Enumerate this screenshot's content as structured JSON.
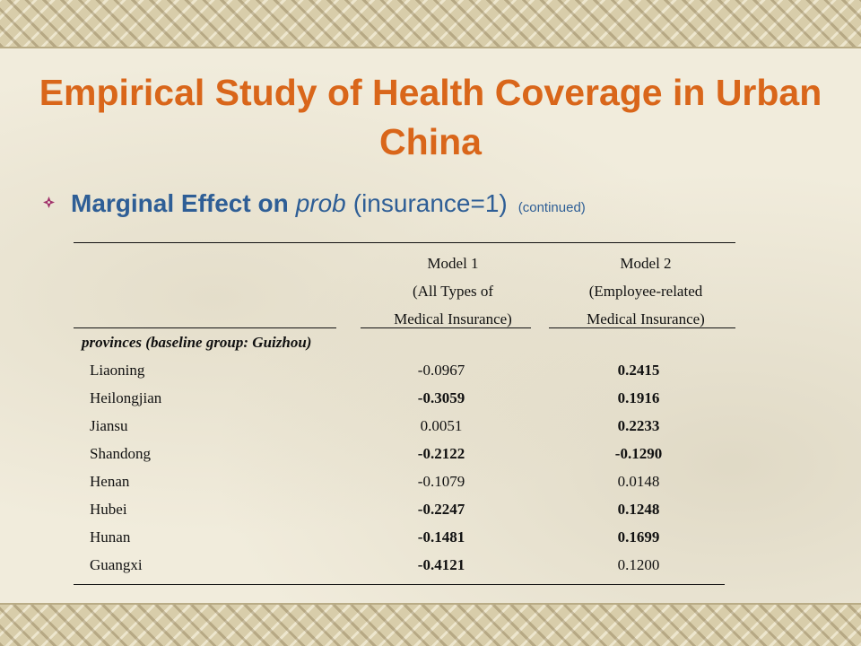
{
  "slide": {
    "title": "Empirical Study of Health Coverage in Urban China",
    "bullet": {
      "lead": "Marginal Effect on",
      "emph": "prob",
      "cond": "(insurance=1)",
      "note": "(continued)"
    }
  },
  "table": {
    "model1": [
      "Model 1",
      "(All Types of",
      "Medical Insurance)"
    ],
    "model2": [
      "Model 2",
      "(Employee-related",
      "Medical Insurance)"
    ],
    "group_label": "provinces (baseline group: Guizhou)",
    "rows": [
      {
        "name": "Liaoning",
        "m1": "-0.0967",
        "m1_bold": false,
        "m2": "0.2415",
        "m2_bold": true
      },
      {
        "name": "Heilongjian",
        "m1": "-0.3059",
        "m1_bold": true,
        "m2": "0.1916",
        "m2_bold": true
      },
      {
        "name": "Jiansu",
        "m1": "0.0051",
        "m1_bold": false,
        "m2": "0.2233",
        "m2_bold": true
      },
      {
        "name": "Shandong",
        "m1": "-0.2122",
        "m1_bold": true,
        "m2": "-0.1290",
        "m2_bold": true
      },
      {
        "name": "Henan",
        "m1": "-0.1079",
        "m1_bold": false,
        "m2": "0.0148",
        "m2_bold": false
      },
      {
        "name": "Hubei",
        "m1": "-0.2247",
        "m1_bold": true,
        "m2": "0.1248",
        "m2_bold": true
      },
      {
        "name": "Hunan",
        "m1": "-0.1481",
        "m1_bold": true,
        "m2": "0.1699",
        "m2_bold": true
      },
      {
        "name": "Guangxi",
        "m1": "-0.4121",
        "m1_bold": true,
        "m2": "0.1200",
        "m2_bold": false
      }
    ]
  },
  "colors": {
    "title": "#d9661a",
    "bullet_text": "#2e5e96",
    "bullet_icon": "#a0306a"
  },
  "icons": {
    "bullet": "diamond-bullet-icon"
  }
}
